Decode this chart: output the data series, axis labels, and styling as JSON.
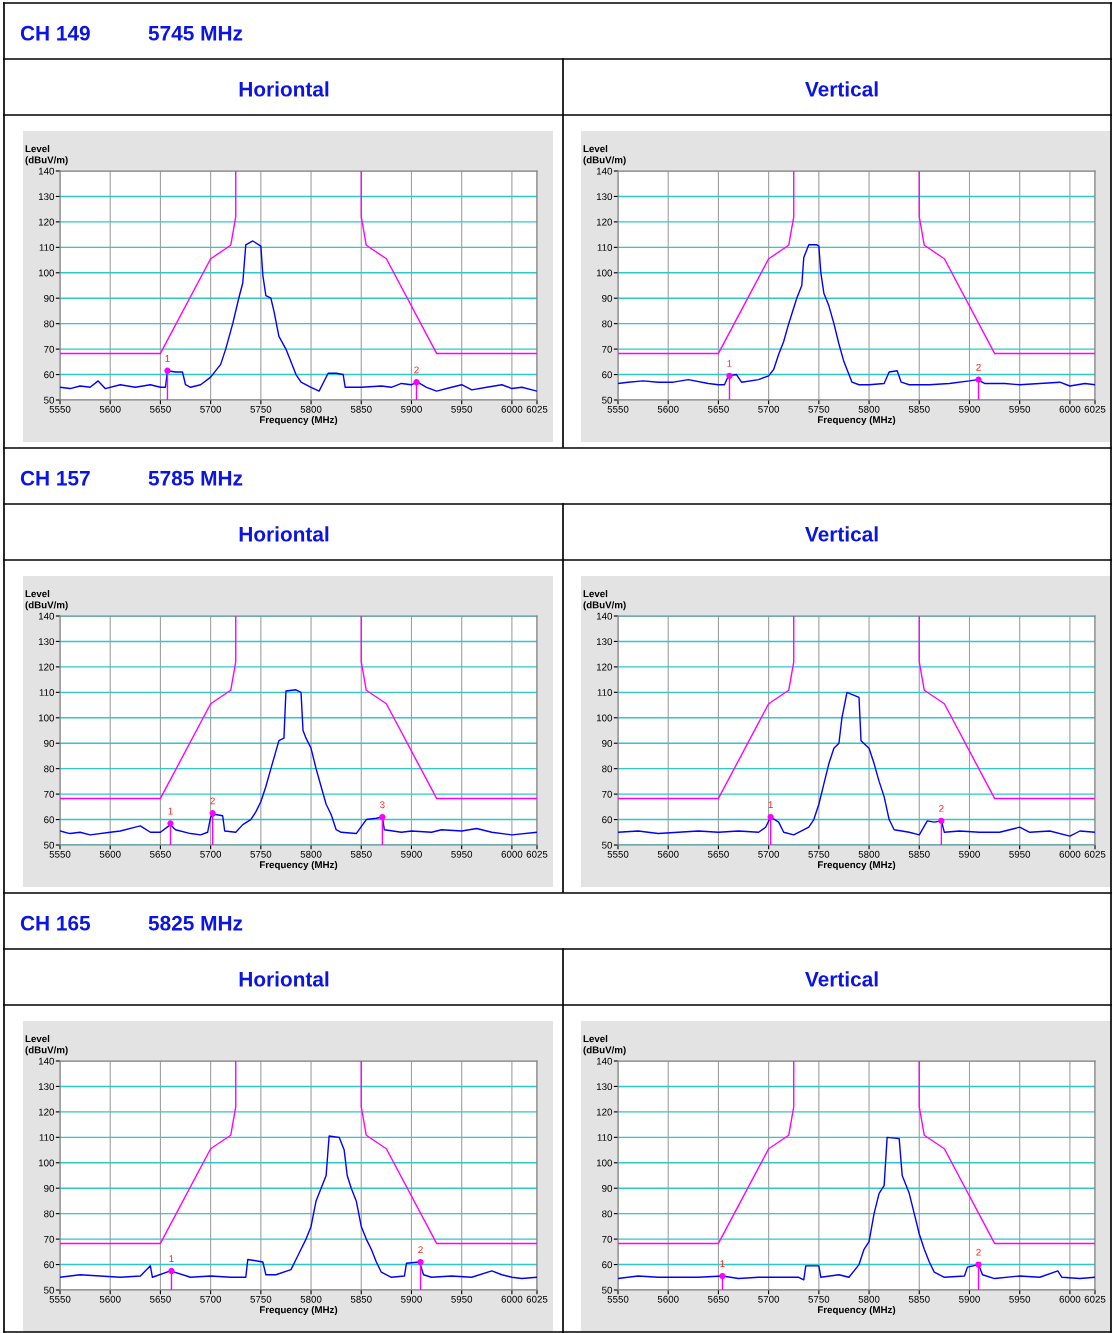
{
  "chart_data": [
    {
      "type": "line",
      "title": "Horiontal",
      "xlabel": "Frequency (MHz)",
      "ylabel": "Level\n(dBuV/m)",
      "xlim": [
        5550,
        6025
      ],
      "ylim": [
        50,
        140
      ],
      "xticks": [
        5550,
        5600,
        5650,
        5700,
        5750,
        5800,
        5850,
        5900,
        5950,
        6000,
        6025
      ],
      "yticks": [
        50,
        60,
        70,
        80,
        90,
        100,
        110,
        120,
        130,
        140
      ],
      "grid": true,
      "annotations": [
        "CH 149",
        "5745 MHz",
        {
          "text": "1",
          "x": 5657,
          "y": 61.5
        },
        {
          "text": "2",
          "x": 5905,
          "y": 57
        }
      ],
      "series": [
        {
          "color": "#ff00ff",
          "x": [
            5550,
            5650,
            5700,
            5720,
            5725,
            5725,
            5787,
            5850,
            5850,
            5855,
            5875,
            5925,
            6025
          ],
          "values": [
            68.3,
            68.3,
            105.5,
            110.8,
            122,
            140,
            null,
            140,
            122,
            110.8,
            105.5,
            68.3,
            68.3
          ]
        },
        {
          "color": "#0000ff",
          "x": [
            5550,
            5560,
            5570,
            5580,
            5588,
            5595,
            5610,
            5625,
            5640,
            5650,
            5655,
            5657,
            5665,
            5672,
            5675,
            5680,
            5690,
            5700,
            5710,
            5715,
            5722,
            5728,
            5732,
            5735,
            5742,
            5750,
            5752,
            5755,
            5760,
            5763,
            5768,
            5775,
            5780,
            5785,
            5790,
            5800,
            5808,
            5817,
            5825,
            5832,
            5834,
            5850,
            5870,
            5880,
            5890,
            5900,
            5906,
            5915,
            5925,
            5940,
            5950,
            5960,
            5975,
            5990,
            6000,
            6010,
            6025
          ],
          "values": [
            55,
            54.5,
            55.5,
            55,
            57.5,
            54.5,
            56,
            55,
            56,
            55,
            55,
            61.5,
            61,
            61,
            56,
            55,
            56,
            59,
            64,
            70,
            80,
            90,
            96,
            111,
            112.5,
            110.5,
            99,
            91,
            90,
            85,
            75,
            70,
            65,
            60,
            57,
            55,
            53.5,
            60.5,
            60.5,
            60,
            55,
            55,
            55.5,
            55,
            56.5,
            56,
            57,
            55,
            53.5,
            55,
            56,
            54,
            55,
            56,
            54.5,
            55,
            53.5
          ]
        }
      ]
    },
    {
      "type": "line",
      "title": "Vertical",
      "xlabel": "Frequency (MHz)",
      "ylabel": "Level\n(dBuV/m)",
      "xlim": [
        5550,
        6025
      ],
      "ylim": [
        50,
        140
      ],
      "xticks": [
        5550,
        5600,
        5650,
        5700,
        5750,
        5800,
        5850,
        5900,
        5950,
        6000,
        6025
      ],
      "yticks": [
        50,
        60,
        70,
        80,
        90,
        100,
        110,
        120,
        130,
        140
      ],
      "grid": true,
      "annotations": [
        {
          "text": "1",
          "x": 5661,
          "y": 59.5
        },
        {
          "text": "2",
          "x": 5909,
          "y": 58
        }
      ],
      "series": [
        {
          "color": "#ff00ff",
          "x": [
            5550,
            5650,
            5700,
            5720,
            5725,
            5725,
            5787,
            5850,
            5850,
            5855,
            5875,
            5925,
            6025
          ],
          "values": [
            68.3,
            68.3,
            105.5,
            110.8,
            122,
            140,
            null,
            140,
            122,
            110.8,
            105.5,
            68.3,
            68.3
          ]
        },
        {
          "color": "#0000ff",
          "x": [
            5550,
            5560,
            5575,
            5590,
            5605,
            5620,
            5640,
            5650,
            5656,
            5660,
            5668,
            5673,
            5690,
            5700,
            5705,
            5710,
            5715,
            5720,
            5728,
            5733,
            5735,
            5740,
            5748,
            5750,
            5752,
            5755,
            5760,
            5765,
            5770,
            5775,
            5780,
            5783,
            5790,
            5800,
            5815,
            5820,
            5828,
            5832,
            5840,
            5860,
            5880,
            5900,
            5908,
            5915,
            5935,
            5950,
            5970,
            5990,
            6000,
            6015,
            6025
          ],
          "values": [
            56.5,
            57,
            57.5,
            57,
            57,
            58,
            56.5,
            56,
            56,
            59.5,
            60,
            57,
            58,
            59.5,
            62,
            68,
            73,
            80,
            90,
            95,
            106,
            111,
            111,
            110.5,
            100,
            92,
            87,
            80,
            72,
            65,
            60,
            57,
            56,
            56,
            56.5,
            61,
            61.5,
            57,
            56,
            56,
            56.5,
            57.5,
            58,
            56.5,
            56.5,
            56,
            56.5,
            57,
            55.5,
            56.5,
            56
          ]
        }
      ]
    },
    {
      "type": "line",
      "title": "Horiontal",
      "xlabel": "Frequency (MHz)",
      "ylabel": "Level\n(dBuV/m)",
      "xlim": [
        5550,
        6025
      ],
      "ylim": [
        50,
        140
      ],
      "xticks": [
        5550,
        5600,
        5650,
        5700,
        5750,
        5800,
        5850,
        5900,
        5950,
        6000,
        6025
      ],
      "yticks": [
        50,
        60,
        70,
        80,
        90,
        100,
        110,
        120,
        130,
        140
      ],
      "grid": true,
      "annotations": [
        "CH 157",
        "5785 MHz",
        {
          "text": "1",
          "x": 5660,
          "y": 58.5
        },
        {
          "text": "2",
          "x": 5702,
          "y": 62.5
        },
        {
          "text": "3",
          "x": 5871,
          "y": 61
        }
      ],
      "series": [
        {
          "color": "#ff00ff",
          "x": [
            5550,
            5650,
            5700,
            5720,
            5725,
            5725,
            5787,
            5850,
            5850,
            5855,
            5875,
            5925,
            6025
          ],
          "values": [
            68.3,
            68.3,
            105.5,
            110.8,
            122,
            140,
            null,
            140,
            122,
            110.8,
            105.5,
            68.3,
            68.3
          ]
        },
        {
          "color": "#0000ff",
          "x": [
            5550,
            5560,
            5570,
            5580,
            5600,
            5610,
            5625,
            5630,
            5640,
            5650,
            5660,
            5665,
            5680,
            5690,
            5697,
            5700,
            5705,
            5712,
            5714,
            5725,
            5732,
            5740,
            5745,
            5750,
            5755,
            5760,
            5768,
            5773,
            5775,
            5785,
            5790,
            5792,
            5795,
            5800,
            5805,
            5810,
            5815,
            5820,
            5825,
            5830,
            5845,
            5855,
            5865,
            5871,
            5873,
            5890,
            5900,
            5920,
            5930,
            5950,
            5965,
            5980,
            6000,
            6025
          ],
          "values": [
            55.5,
            54.5,
            55,
            54,
            55,
            55.5,
            57,
            57.5,
            55,
            55,
            58,
            56,
            54.5,
            54,
            55,
            61,
            62,
            61.5,
            55.5,
            55,
            58,
            60,
            63,
            67,
            73,
            80,
            91,
            92,
            110.5,
            111,
            110,
            95,
            92,
            88,
            80,
            73,
            66,
            62,
            56,
            55,
            54.5,
            60,
            60.5,
            61,
            56,
            55,
            55.5,
            55,
            56,
            55.5,
            56.5,
            55,
            54,
            55
          ]
        }
      ]
    },
    {
      "type": "line",
      "title": "Vertical",
      "xlabel": "Frequency (MHz)",
      "ylabel": "Level\n(dBuV/m)",
      "xlim": [
        5550,
        6025
      ],
      "ylim": [
        50,
        140
      ],
      "xticks": [
        5550,
        5600,
        5650,
        5700,
        5750,
        5800,
        5850,
        5900,
        5950,
        6000,
        6025
      ],
      "yticks": [
        50,
        60,
        70,
        80,
        90,
        100,
        110,
        120,
        130,
        140
      ],
      "grid": true,
      "annotations": [
        {
          "text": "1",
          "x": 5702,
          "y": 61
        },
        {
          "text": "2",
          "x": 5872,
          "y": 59.5
        }
      ],
      "series": [
        {
          "color": "#ff00ff",
          "x": [
            5550,
            5650,
            5700,
            5720,
            5725,
            5725,
            5787,
            5850,
            5850,
            5855,
            5875,
            5925,
            6025
          ],
          "values": [
            68.3,
            68.3,
            105.5,
            110.8,
            122,
            140,
            null,
            140,
            122,
            110.8,
            105.5,
            68.3,
            68.3
          ]
        },
        {
          "color": "#0000ff",
          "x": [
            5550,
            5570,
            5590,
            5610,
            5630,
            5650,
            5670,
            5690,
            5697,
            5702,
            5710,
            5715,
            5725,
            5740,
            5745,
            5750,
            5755,
            5760,
            5765,
            5770,
            5773,
            5778,
            5790,
            5792,
            5800,
            5805,
            5810,
            5815,
            5820,
            5825,
            5840,
            5850,
            5858,
            5865,
            5872,
            5875,
            5890,
            5910,
            5930,
            5945,
            5950,
            5960,
            5980,
            6000,
            6010,
            6025
          ],
          "values": [
            55,
            55.5,
            54.5,
            55,
            55.5,
            55,
            55.5,
            55,
            57,
            61,
            59,
            55,
            54,
            57,
            60,
            66,
            74,
            82,
            88,
            90,
            100,
            110,
            108,
            91,
            88,
            82,
            75,
            69,
            60,
            56,
            55,
            54,
            59.5,
            59,
            59.5,
            55,
            55.5,
            55,
            55,
            56.5,
            57,
            55,
            55.5,
            53.5,
            55.5,
            55
          ]
        }
      ]
    },
    {
      "type": "line",
      "title": "Horiontal",
      "xlabel": "Frequency (MHz)",
      "ylabel": "Level\n(dBuV/m)",
      "xlim": [
        5550,
        6025
      ],
      "ylim": [
        50,
        140
      ],
      "xticks": [
        5550,
        5600,
        5650,
        5700,
        5750,
        5800,
        5850,
        5900,
        5950,
        6000,
        6025
      ],
      "yticks": [
        50,
        60,
        70,
        80,
        90,
        100,
        110,
        120,
        130,
        140
      ],
      "grid": true,
      "annotations": [
        "CH 165",
        "5825 MHz",
        {
          "text": "1",
          "x": 5661,
          "y": 57.5
        },
        {
          "text": "2",
          "x": 5909,
          "y": 61
        }
      ],
      "series": [
        {
          "color": "#ff00ff",
          "x": [
            5550,
            5650,
            5700,
            5720,
            5725,
            5725,
            5787,
            5850,
            5850,
            5855,
            5875,
            5925,
            6025
          ],
          "values": [
            68.3,
            68.3,
            105.5,
            110.8,
            122,
            140,
            null,
            140,
            122,
            110.8,
            105.5,
            68.3,
            68.3
          ]
        },
        {
          "color": "#0000ff",
          "x": [
            5550,
            5560,
            5570,
            5590,
            5610,
            5630,
            5640,
            5642,
            5660,
            5680,
            5700,
            5720,
            5735,
            5737,
            5745,
            5752,
            5755,
            5765,
            5780,
            5785,
            5790,
            5795,
            5800,
            5805,
            5810,
            5815,
            5818,
            5828,
            5833,
            5836,
            5840,
            5845,
            5850,
            5855,
            5860,
            5865,
            5870,
            5880,
            5893,
            5895,
            5908,
            5912,
            5920,
            5940,
            5960,
            5980,
            5990,
            6000,
            6010,
            6025
          ],
          "values": [
            55,
            55.5,
            56,
            55.5,
            55,
            55.5,
            59.5,
            55,
            57.5,
            55,
            55.5,
            55,
            55,
            62,
            61.5,
            61,
            56,
            56,
            58,
            62,
            66,
            70,
            75,
            85,
            90,
            95,
            110.5,
            110,
            105,
            95,
            90,
            85,
            75,
            70,
            66,
            61,
            57,
            55,
            55.5,
            60.5,
            61,
            56,
            55,
            55.5,
            55,
            57.5,
            56,
            55,
            54.5,
            55
          ]
        }
      ]
    },
    {
      "type": "line",
      "title": "Vertical",
      "xlabel": "Frequency (MHz)",
      "ylabel": "Level\n(dBuV/m)",
      "xlim": [
        5550,
        6025
      ],
      "ylim": [
        50,
        140
      ],
      "xticks": [
        5550,
        5600,
        5650,
        5700,
        5750,
        5800,
        5850,
        5900,
        5950,
        6000,
        6025
      ],
      "yticks": [
        50,
        60,
        70,
        80,
        90,
        100,
        110,
        120,
        130,
        140
      ],
      "grid": true,
      "annotations": [
        {
          "text": "1",
          "x": 5654,
          "y": 55.5
        },
        {
          "text": "2",
          "x": 5909,
          "y": 60
        }
      ],
      "series": [
        {
          "color": "#ff00ff",
          "x": [
            5550,
            5650,
            5700,
            5720,
            5725,
            5725,
            5787,
            5850,
            5850,
            5855,
            5875,
            5925,
            6025
          ],
          "values": [
            68.3,
            68.3,
            105.5,
            110.8,
            122,
            140,
            null,
            140,
            122,
            110.8,
            105.5,
            68.3,
            68.3
          ]
        },
        {
          "color": "#0000ff",
          "x": [
            5550,
            5570,
            5590,
            5610,
            5630,
            5654,
            5670,
            5690,
            5710,
            5730,
            5735,
            5737,
            5750,
            5752,
            5770,
            5780,
            5790,
            5795,
            5800,
            5805,
            5810,
            5815,
            5818,
            5830,
            5833,
            5840,
            5845,
            5850,
            5855,
            5860,
            5865,
            5875,
            5895,
            5898,
            5909,
            5913,
            5925,
            5950,
            5970,
            5988,
            5992,
            6010,
            6025
          ],
          "values": [
            54.5,
            55.5,
            55,
            55,
            55,
            55.5,
            54.5,
            55,
            55,
            55,
            54,
            59.5,
            59.5,
            55,
            56,
            55,
            60,
            66,
            69,
            80,
            88,
            91,
            110,
            109.5,
            95,
            88,
            80,
            72,
            66,
            61,
            57,
            55,
            55.5,
            59,
            60,
            56,
            54.5,
            55.5,
            55,
            57.5,
            55,
            54.5,
            55
          ]
        }
      ]
    }
  ]
}
